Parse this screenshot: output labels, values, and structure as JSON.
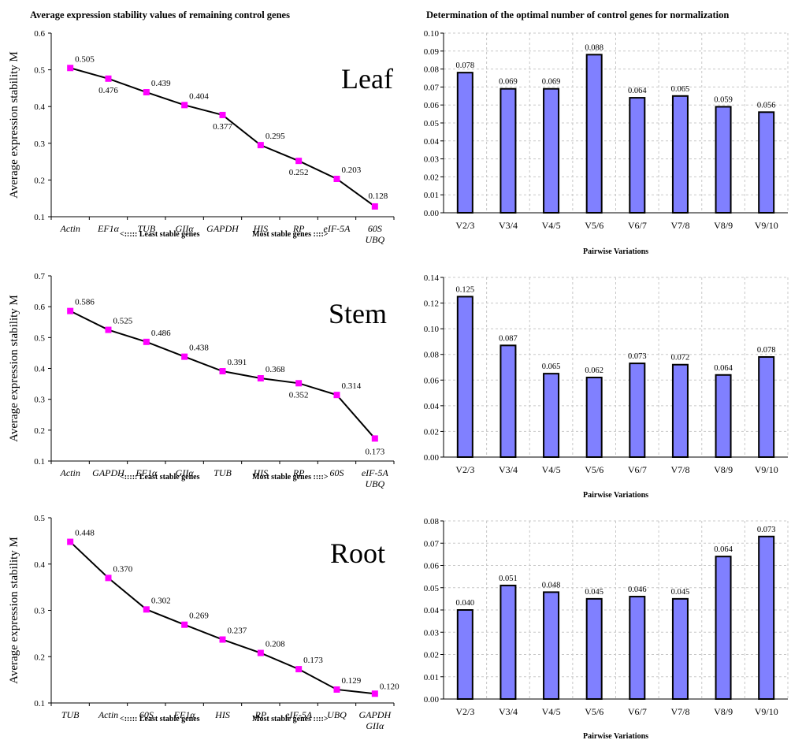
{
  "headers": {
    "left": "Average expression stability values of remaining control genes",
    "right": "Determination of the optimal number of control genes for normalization"
  },
  "chart_data": [
    {
      "type": "line",
      "tissue_label": "Leaf",
      "ylabel": "Average expression stability M",
      "xlabel_left": "<:::::  Least stable genes",
      "xlabel_right": "Most stable genes ::::>",
      "categories": [
        [
          "Actin"
        ],
        [
          "EF1α"
        ],
        [
          "TUB"
        ],
        [
          "GIIα"
        ],
        [
          "GAPDH"
        ],
        [
          "HIS"
        ],
        [
          "RP"
        ],
        [
          "eIF-5A"
        ],
        [
          "60S",
          "UBQ"
        ]
      ],
      "values": [
        0.505,
        0.476,
        0.439,
        0.404,
        0.377,
        0.295,
        0.252,
        0.203,
        0.128
      ],
      "value_labels": [
        "0.505",
        "0.476",
        "0.439",
        "0.404",
        "0.377",
        "0.295",
        "0.252",
        "0.203",
        "0.128"
      ],
      "ylim": [
        0.1,
        0.6
      ],
      "yticks": [
        "0.1",
        "0.2",
        "0.3",
        "0.4",
        "0.5",
        "0.6"
      ],
      "colors": {
        "line": "#000000",
        "marker": "#ff00ff"
      }
    },
    {
      "type": "bar",
      "xlabel": "Pairwise Variations",
      "categories": [
        "V2/3",
        "V3/4",
        "V4/5",
        "V5/6",
        "V6/7",
        "V7/8",
        "V8/9",
        "V9/10"
      ],
      "values": [
        0.078,
        0.069,
        0.069,
        0.088,
        0.064,
        0.065,
        0.059,
        0.056
      ],
      "value_labels": [
        "0.078",
        "0.069",
        "0.069",
        "0.088",
        "0.064",
        "0.065",
        "0.059",
        "0.056"
      ],
      "ylim": [
        0,
        0.1
      ],
      "yticks": [
        "0.00",
        "0.01",
        "0.02",
        "0.03",
        "0.04",
        "0.05",
        "0.06",
        "0.07",
        "0.08",
        "0.09",
        "0.10"
      ],
      "grid": true,
      "colors": {
        "bar": "#8080ff"
      }
    },
    {
      "type": "line",
      "tissue_label": "Stem",
      "ylabel": "Average expression stability M",
      "xlabel_left": "<:::::  Least stable genes",
      "xlabel_right": "Most stable genes ::::>",
      "categories": [
        [
          "Actin"
        ],
        [
          "GAPDH"
        ],
        [
          "EF1α"
        ],
        [
          "GIIα"
        ],
        [
          "TUB"
        ],
        [
          "HIS"
        ],
        [
          "RP"
        ],
        [
          "60S"
        ],
        [
          "eIF-5A",
          "UBQ"
        ]
      ],
      "values": [
        0.586,
        0.525,
        0.486,
        0.438,
        0.391,
        0.368,
        0.352,
        0.314,
        0.173
      ],
      "value_labels": [
        "0.586",
        "0.525",
        "0.486",
        "0.438",
        "0.391",
        "0.368",
        "0.352",
        "0.314",
        "0.173"
      ],
      "ylim": [
        0.1,
        0.7
      ],
      "yticks": [
        "0.1",
        "0.2",
        "0.3",
        "0.4",
        "0.5",
        "0.6",
        "0.7"
      ],
      "colors": {
        "line": "#000000",
        "marker": "#ff00ff"
      }
    },
    {
      "type": "bar",
      "xlabel": "Pairwise Variations",
      "categories": [
        "V2/3",
        "V3/4",
        "V4/5",
        "V5/6",
        "V6/7",
        "V7/8",
        "V8/9",
        "V9/10"
      ],
      "values": [
        0.125,
        0.087,
        0.065,
        0.062,
        0.073,
        0.072,
        0.064,
        0.078
      ],
      "value_labels": [
        "0.125",
        "0.087",
        "0.065",
        "0.062",
        "0.073",
        "0.072",
        "0.064",
        "0.078"
      ],
      "ylim": [
        0,
        0.14
      ],
      "yticks": [
        "0.00",
        "0.02",
        "0.04",
        "0.06",
        "0.08",
        "0.10",
        "0.12",
        "0.14"
      ],
      "grid": true,
      "colors": {
        "bar": "#8080ff"
      }
    },
    {
      "type": "line",
      "tissue_label": "Root",
      "ylabel": "Average expression stability M",
      "xlabel_left": "<:::::  Least stable genes",
      "xlabel_right": "Most stable genes ::::>",
      "categories": [
        [
          "TUB"
        ],
        [
          "Actin"
        ],
        [
          "60S"
        ],
        [
          "EF1α"
        ],
        [
          "HIS"
        ],
        [
          "RP"
        ],
        [
          "eIF-5A"
        ],
        [
          "UBQ"
        ],
        [
          "GAPDH",
          "GIIα"
        ]
      ],
      "values": [
        0.448,
        0.37,
        0.302,
        0.269,
        0.237,
        0.208,
        0.173,
        0.129,
        0.12
      ],
      "value_labels": [
        "0.448",
        "0.370",
        "0.302",
        "0.269",
        "0.237",
        "0.208",
        "0.173",
        "0.129",
        "0.120"
      ],
      "ylim": [
        0.1,
        0.5
      ],
      "yticks": [
        "0.1",
        "0.2",
        "0.3",
        "0.4",
        "0.5"
      ],
      "colors": {
        "line": "#000000",
        "marker": "#ff00ff"
      }
    },
    {
      "type": "bar",
      "xlabel": "Pairwise Variations",
      "categories": [
        "V2/3",
        "V3/4",
        "V4/5",
        "V5/6",
        "V6/7",
        "V7/8",
        "V8/9",
        "V9/10"
      ],
      "values": [
        0.04,
        0.051,
        0.048,
        0.045,
        0.046,
        0.045,
        0.064,
        0.073
      ],
      "value_labels": [
        "0.040",
        "0.051",
        "0.048",
        "0.045",
        "0.046",
        "0.045",
        "0.064",
        "0.073"
      ],
      "ylim": [
        0,
        0.08
      ],
      "yticks": [
        "0.00",
        "0.01",
        "0.02",
        "0.03",
        "0.04",
        "0.05",
        "0.06",
        "0.07",
        "0.08"
      ],
      "grid": true,
      "colors": {
        "bar": "#8080ff"
      }
    }
  ]
}
